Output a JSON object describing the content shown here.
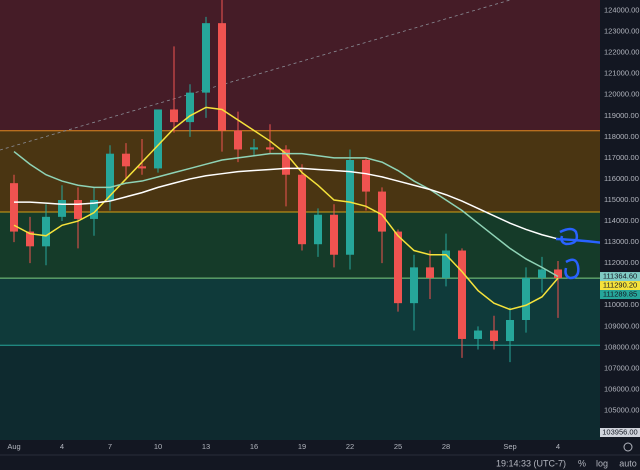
{
  "chart_data": {
    "type": "candlestick",
    "categories": [
      "Aug",
      null,
      null,
      "4",
      null,
      null,
      "7",
      null,
      null,
      "10",
      null,
      null,
      "13",
      null,
      null,
      "16",
      null,
      null,
      "19",
      null,
      null,
      "22",
      null,
      null,
      "25",
      null,
      null,
      "28",
      null,
      null,
      null,
      "Sep",
      null,
      null,
      "4"
    ],
    "open": [
      115800,
      113500,
      112800,
      114200,
      115000,
      114100,
      115000,
      117200,
      116600,
      116500,
      119300,
      118700,
      120100,
      123400,
      118300,
      117400,
      117500,
      117400,
      116200,
      112900,
      114300,
      112400,
      116900,
      115400,
      113500,
      110100,
      111800,
      111300,
      112600,
      108400,
      108800,
      108300,
      109300,
      111300,
      111700
    ],
    "high": [
      116200,
      114200,
      114800,
      115700,
      115600,
      115600,
      117600,
      117700,
      117900,
      119300,
      122300,
      120500,
      123700,
      124500,
      119200,
      117900,
      118600,
      117600,
      116700,
      114600,
      114800,
      117400,
      117000,
      115600,
      113600,
      112400,
      112600,
      113400,
      112700,
      109000,
      109500,
      109900,
      111800,
      112300,
      112100
    ],
    "low": [
      113000,
      112000,
      111900,
      114000,
      112700,
      113300,
      114500,
      116000,
      116200,
      116300,
      118200,
      118000,
      118900,
      117300,
      116800,
      117100,
      117200,
      114700,
      112600,
      112300,
      111800,
      111700,
      114500,
      112000,
      109700,
      108800,
      110300,
      110900,
      107500,
      107900,
      107900,
      107300,
      108700,
      110600,
      109400
    ],
    "close": [
      113500,
      112800,
      114200,
      115000,
      114100,
      115000,
      117200,
      116600,
      116500,
      119300,
      118700,
      120100,
      123400,
      118300,
      117400,
      117500,
      117400,
      116200,
      112900,
      114300,
      112400,
      116900,
      115400,
      113500,
      110100,
      111800,
      111300,
      112600,
      108400,
      108800,
      108300,
      109300,
      111300,
      111700,
      111289.85
    ],
    "up_color": "#26a69a",
    "down_color": "#ef5350",
    "series": [
      {
        "color": "#f5e23b",
        "values": [
          113800,
          113400,
          113300,
          113800,
          114000,
          114400,
          115200,
          116000,
          116800,
          117600,
          118400,
          119000,
          119400,
          119300,
          118800,
          118300,
          117800,
          117200,
          116300,
          115700,
          115000,
          114900,
          114700,
          114300,
          113300,
          112600,
          112400,
          112400,
          111600,
          110700,
          110100,
          109800,
          110000,
          110400,
          111290.2
        ]
      },
      {
        "color": "#8fd3b6",
        "values": [
          117300,
          116700,
          116200,
          115900,
          115700,
          115600,
          115600,
          115800,
          115900,
          116100,
          116300,
          116500,
          116700,
          116900,
          117000,
          117100,
          117200,
          117200,
          117200,
          117100,
          117000,
          117000,
          117000,
          116800,
          116400,
          115900,
          115500,
          115000,
          114500,
          113900,
          113300,
          112700,
          112200,
          111800,
          111364.6
        ]
      },
      {
        "color": "#ffffff",
        "values": [
          114900,
          114900,
          114850,
          114800,
          114800,
          114850,
          114950,
          115150,
          115350,
          115600,
          115800,
          116000,
          116150,
          116250,
          116350,
          116400,
          116450,
          116500,
          116500,
          116450,
          116400,
          116350,
          116250,
          116100,
          115900,
          115700,
          115500,
          115250,
          114950,
          114600,
          114250,
          113900,
          113600,
          113350,
          113150
        ]
      }
    ],
    "ylim": [
      103600,
      124500
    ],
    "yticks": [
      {
        "value": 105000,
        "label": "105000.00"
      },
      {
        "value": 106000,
        "label": "106000.00"
      },
      {
        "value": 107000,
        "label": "107000.00"
      },
      {
        "value": 108000,
        "label": "108000.00"
      },
      {
        "value": 109000,
        "label": "109000.00"
      },
      {
        "value": 110000,
        "label": "110000.00"
      },
      {
        "value": 111000,
        "label": "111000.00"
      },
      {
        "value": 112000,
        "label": "112000.00"
      },
      {
        "value": 113000,
        "label": "113000.00"
      },
      {
        "value": 114000,
        "label": "114000.00"
      },
      {
        "value": 115000,
        "label": "115000.00"
      },
      {
        "value": 116000,
        "label": "116000.00"
      },
      {
        "value": 117000,
        "label": "117000.00"
      },
      {
        "value": 118000,
        "label": "118000.00"
      },
      {
        "value": 119000,
        "label": "119000.00"
      },
      {
        "value": 120000,
        "label": "120000.00"
      },
      {
        "value": 121000,
        "label": "121000.00"
      },
      {
        "value": 122000,
        "label": "122000.00"
      },
      {
        "value": 123000,
        "label": "123000.00"
      },
      {
        "value": 124000,
        "label": "124000.00"
      }
    ],
    "levels": [
      {
        "value": 108100,
        "color": "#26a69a"
      },
      {
        "value": 111290,
        "color": "#7fd17f"
      },
      {
        "value": 114430,
        "color": "#d4a017"
      },
      {
        "value": 118290,
        "color": "#e08a1e"
      }
    ],
    "zone_colors": [
      "#0e2a2f",
      "#0f3a3a",
      "#153b29",
      "#4a3512",
      "#451c27"
    ],
    "price_labels": [
      {
        "value": 111364.6,
        "label": "111364.60",
        "color": "#80cbc4"
      },
      {
        "value": 111290.2,
        "label": "111290.20",
        "color": "#f5e23b"
      },
      {
        "value": 111289.85,
        "label": "111289.85",
        "color": "#26a69a"
      },
      {
        "value": 103956,
        "label": "103956.00",
        "color": "#d1d4dc"
      }
    ]
  },
  "toolbar": {
    "time": "19:14:33 (UTC-7)",
    "buttons": [
      "%",
      "log",
      "auto"
    ]
  }
}
